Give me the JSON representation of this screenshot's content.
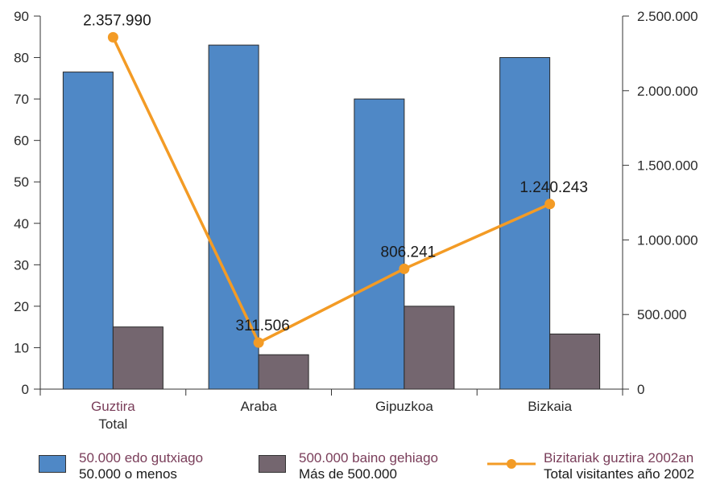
{
  "chart_data": {
    "type": "bar+line",
    "categories": [
      {
        "eu": "Guztira",
        "es": "Total"
      },
      {
        "eu": "Araba",
        "es": ""
      },
      {
        "eu": "Gipuzkoa",
        "es": ""
      },
      {
        "eu": "Bizkaia",
        "es": ""
      }
    ],
    "series": [
      {
        "name_eu": "50.000 edo gutxiago",
        "name_es": "50.000 o menos",
        "axis": "left",
        "kind": "bar",
        "color": "#4f88c6",
        "values": [
          76.5,
          83,
          70,
          80
        ]
      },
      {
        "name_eu": "500.000 baino gehiago",
        "name_es": "Más de 500.000",
        "axis": "left",
        "kind": "bar",
        "color": "#74666f",
        "values": [
          15,
          8.3,
          20,
          13.3
        ]
      },
      {
        "name_eu": "Bizitariak guztira 2002an",
        "name_es": "Total visitantes año 2002",
        "axis": "right",
        "kind": "line",
        "color": "#f39b25",
        "values": [
          2357990,
          311506,
          806241,
          1240243
        ],
        "labels": [
          "2.357.990",
          "311.506",
          "806.241",
          "1.240.243"
        ]
      }
    ],
    "left_axis": {
      "min": 0,
      "max": 90,
      "ticks": [
        "0",
        "10",
        "20",
        "30",
        "40",
        "50",
        "60",
        "70",
        "80",
        "90"
      ]
    },
    "right_axis": {
      "min": 0,
      "max": 2500000,
      "ticks": [
        "0",
        "500.000",
        "1.000.000",
        "1.500.000",
        "2.000.000",
        "2.500.000"
      ]
    },
    "grid": false,
    "legend_position": "bottom"
  }
}
